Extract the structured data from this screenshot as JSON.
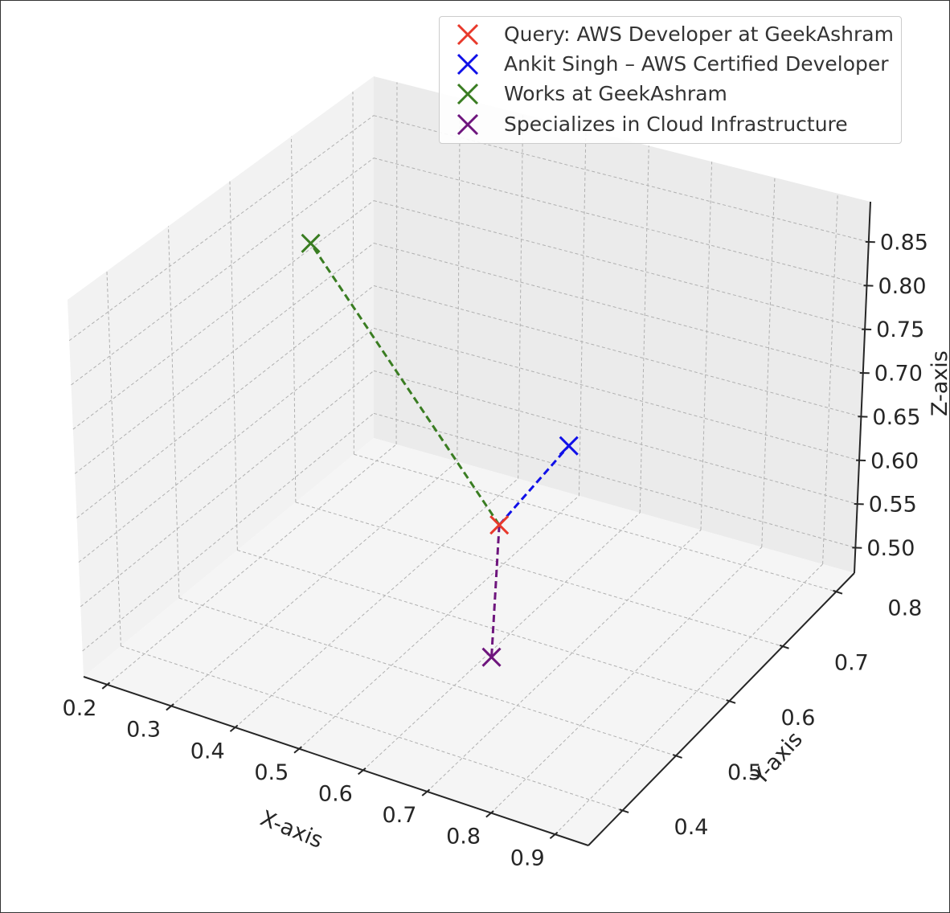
{
  "chart_data": {
    "type": "scatter",
    "subtype": "3d-scatter-with-lines",
    "title": "",
    "xlabel": "X-axis",
    "ylabel": "Y-axis",
    "zlabel": "Z-axis",
    "xticks": [
      "0.2",
      "0.3",
      "0.4",
      "0.5",
      "0.6",
      "0.7",
      "0.8",
      "0.9"
    ],
    "yticks": [
      "0.4",
      "0.5",
      "0.6",
      "0.7",
      "0.8"
    ],
    "zticks": [
      "0.50",
      "0.55",
      "0.60",
      "0.65",
      "0.70",
      "0.75",
      "0.80",
      "0.85"
    ],
    "grid": true,
    "legend_position": "top-right",
    "series": [
      {
        "name": "Query: AWS Developer at GeekAshram",
        "color": "#e8392b",
        "marker": "x",
        "x": 0.58,
        "y": 0.6,
        "z": 0.6
      },
      {
        "name": "Ankit Singh – AWS Certified Developer",
        "color": "#1010e8",
        "marker": "x",
        "x": 0.6,
        "y": 0.7,
        "z": 0.64
      },
      {
        "name": "Works at GeekAshram",
        "color": "#3a7d22",
        "marker": "x",
        "x": 0.3,
        "y": 0.6,
        "z": 0.85
      },
      {
        "name": "Specializes in Cloud Infrastructure",
        "color": "#6e157d",
        "marker": "x",
        "x": 0.75,
        "y": 0.4,
        "z": 0.6
      }
    ],
    "connections": [
      {
        "from": 0,
        "to": 1,
        "color": "#1010e8",
        "style": "dashed"
      },
      {
        "from": 0,
        "to": 2,
        "color": "#3a7d22",
        "style": "dashed"
      },
      {
        "from": 0,
        "to": 3,
        "color": "#6e157d",
        "style": "dashed"
      }
    ]
  }
}
